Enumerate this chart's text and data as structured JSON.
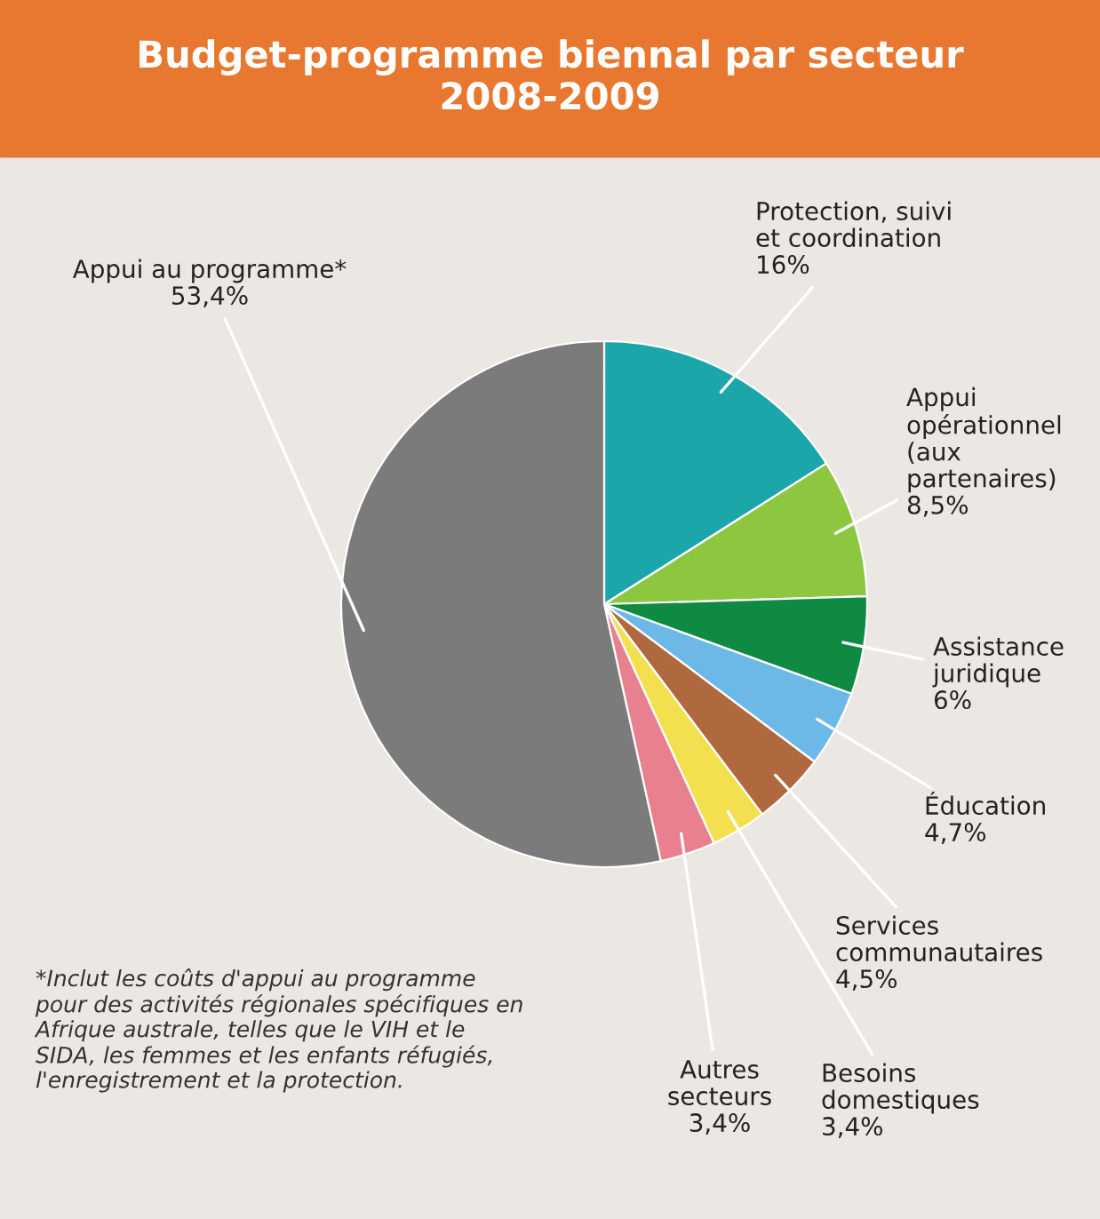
{
  "chart_data": {
    "type": "pie",
    "title": "Budget-programme biennal par secteur\n2008-2009",
    "categories": [
      "Protection, suivi\net coordination",
      "Appui\nopérationnel\n(aux\npartenaires)",
      "Assistance\njuridique",
      "Éducation",
      "Services\ncommunautaires",
      "Besoins\ndomestiques",
      "Autres\nsecteurs",
      "Appui au programme*"
    ],
    "values": [
      16,
      8.5,
      6,
      4.7,
      4.5,
      3.4,
      3.4,
      53.4
    ],
    "value_labels": [
      "16%",
      "8,5%",
      "6%",
      "4,7%",
      "4,5%",
      "3,4%",
      "3,4%",
      "53,4%"
    ],
    "colors": [
      "#1ba6aa",
      "#8dc63f",
      "#0e8a43",
      "#6cb8e6",
      "#b0693f",
      "#f4df4e",
      "#e9808f",
      "#7b7b7b"
    ],
    "annotations": [
      "*Inclut les coûts d'appui au programme pour des activités régionales spécifiques en Afrique australe, telles que le VIH et le SIDA, les femmes et les enfants réfugiés, l'enregistrement et la protection."
    ]
  }
}
